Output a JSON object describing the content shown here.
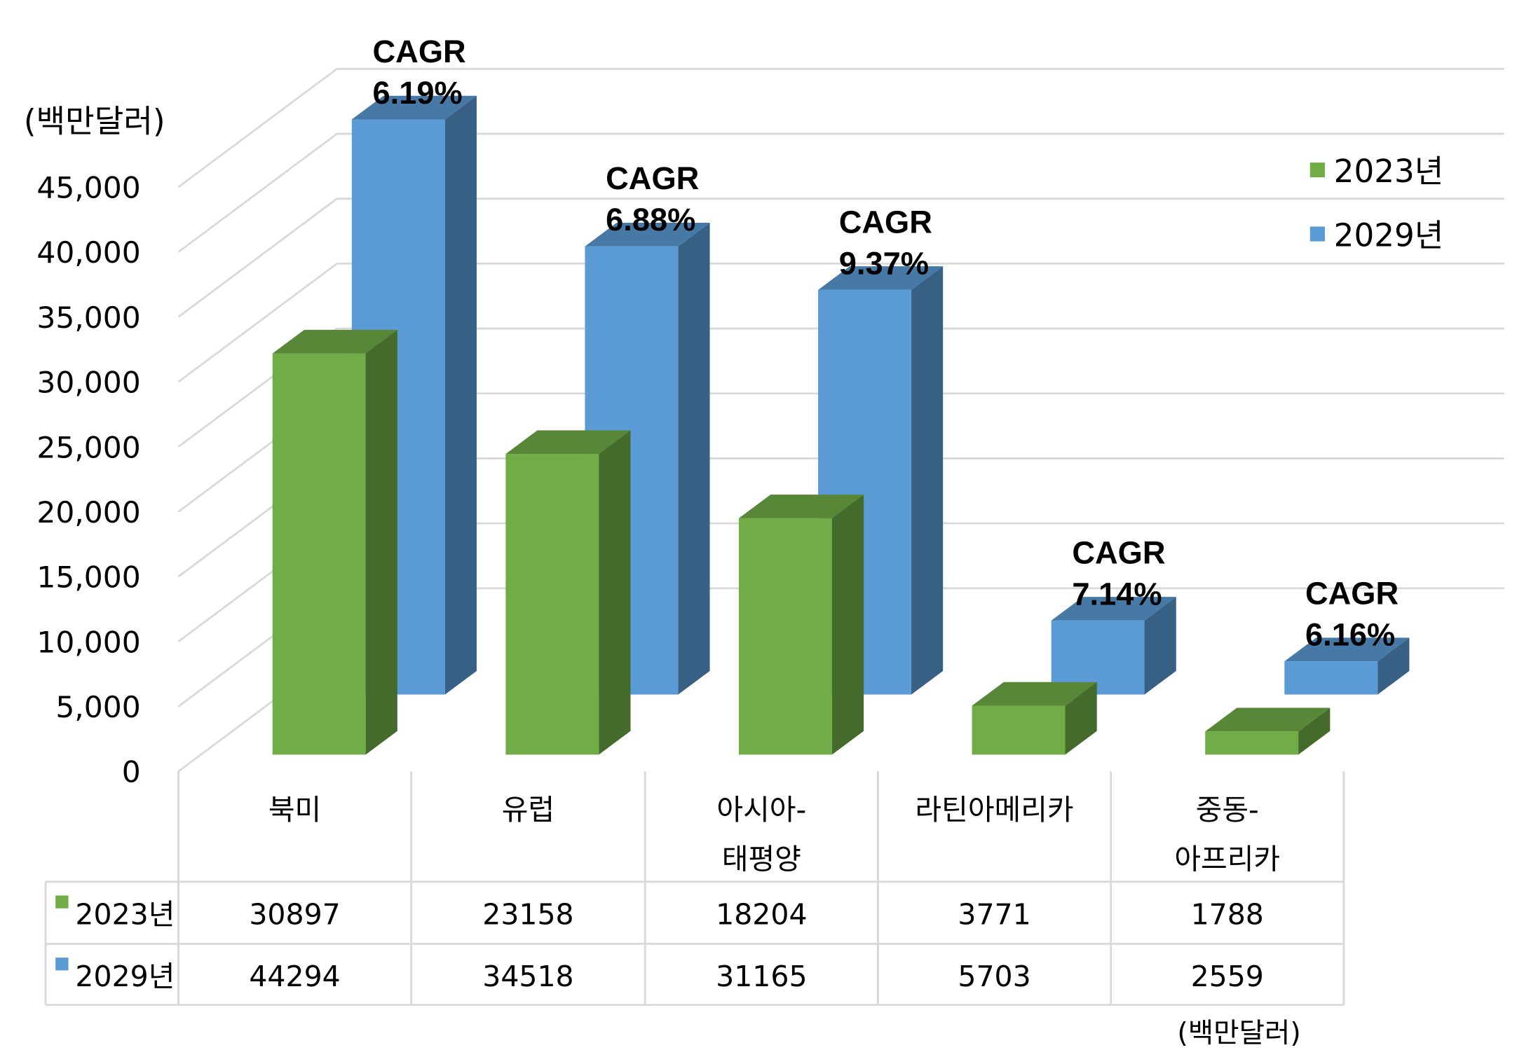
{
  "chart_data": {
    "type": "bar",
    "style": "3d-clustered-column-with-data-table",
    "ylabel": "(백만달러)",
    "unit_note": "(백만달러)",
    "ylim": [
      0,
      45000
    ],
    "yticks": [
      0,
      5000,
      10000,
      15000,
      20000,
      25000,
      30000,
      35000,
      40000,
      45000
    ],
    "ytick_labels": [
      "0",
      "5,000",
      "10,000",
      "15,000",
      "20,000",
      "25,000",
      "30,000",
      "35,000",
      "40,000",
      "45,000"
    ],
    "grid": true,
    "legend_position": "right",
    "categories": [
      [
        "북미"
      ],
      [
        "유럽"
      ],
      [
        "아시아-",
        "태평양"
      ],
      [
        "라틴아메리카"
      ],
      [
        "중동-",
        "아프리카"
      ]
    ],
    "series": [
      {
        "name": "2023년",
        "color": "#70AD47",
        "values": [
          30897,
          23158,
          18204,
          3771,
          1788
        ]
      },
      {
        "name": "2029년",
        "color": "#5B9BD5",
        "values": [
          44294,
          34518,
          31165,
          5703,
          2559
        ]
      }
    ],
    "annotations": [
      {
        "line1": "CAGR",
        "line2": "6.19%"
      },
      {
        "line1": "CAGR",
        "line2": "6.88%"
      },
      {
        "line1": "CAGR",
        "line2": "9.37%"
      },
      {
        "line1": "CAGR",
        "line2": "7.14%"
      },
      {
        "line1": "CAGR",
        "line2": "6.16%"
      }
    ]
  }
}
